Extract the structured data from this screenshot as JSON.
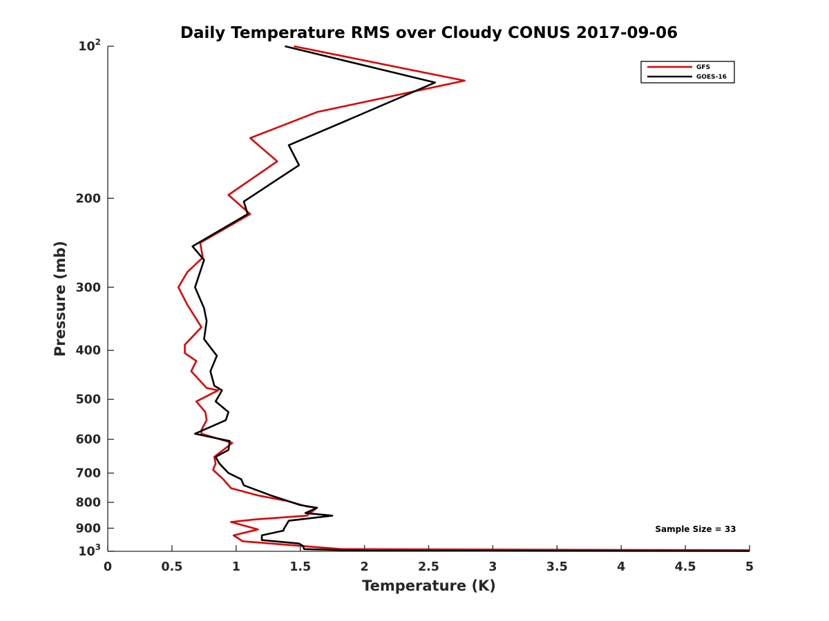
{
  "chart_data": {
    "type": "line",
    "title": "Daily Temperature RMS over Cloudy CONUS 2017-09-06",
    "xlabel": "Temperature (K)",
    "ylabel": "Pressure (mb)",
    "xlim": [
      0,
      5
    ],
    "ylim": [
      100,
      1000
    ],
    "y_scale": "log",
    "y_reversed": true,
    "grid": false,
    "legend_position": "top-right",
    "x_ticks": [
      "0",
      "0.5",
      "1",
      "1.5",
      "2",
      "2.5",
      "3",
      "3.5",
      "4",
      "4.5",
      "5"
    ],
    "y_ticks": [
      {
        "value": 100,
        "label": "10",
        "exp": "2"
      },
      {
        "value": 200,
        "label": "200"
      },
      {
        "value": 300,
        "label": "300"
      },
      {
        "value": 400,
        "label": "400"
      },
      {
        "value": 500,
        "label": "500"
      },
      {
        "value": 600,
        "label": "600"
      },
      {
        "value": 700,
        "label": "700"
      },
      {
        "value": 800,
        "label": "800"
      },
      {
        "value": 900,
        "label": "900"
      },
      {
        "value": 1000,
        "label": "10",
        "exp": "3"
      }
    ],
    "annotation": "Sample Size = 33",
    "series": [
      {
        "name": "GFS",
        "color": "#e00000",
        "points": [
          [
            1.45,
            100
          ],
          [
            2.78,
            117
          ],
          [
            1.63,
            135
          ],
          [
            1.11,
            152
          ],
          [
            1.32,
            169
          ],
          [
            0.94,
            197
          ],
          [
            1.11,
            215
          ],
          [
            0.72,
            245
          ],
          [
            0.74,
            262
          ],
          [
            0.62,
            280
          ],
          [
            0.55,
            300
          ],
          [
            0.62,
            325
          ],
          [
            0.73,
            360
          ],
          [
            0.6,
            390
          ],
          [
            0.6,
            405
          ],
          [
            0.69,
            420
          ],
          [
            0.65,
            440
          ],
          [
            0.77,
            475
          ],
          [
            0.86,
            480
          ],
          [
            0.69,
            505
          ],
          [
            0.76,
            530
          ],
          [
            0.77,
            550
          ],
          [
            0.73,
            575
          ],
          [
            0.73,
            585
          ],
          [
            0.97,
            610
          ],
          [
            0.9,
            630
          ],
          [
            0.83,
            650
          ],
          [
            0.84,
            670
          ],
          [
            0.82,
            690
          ],
          [
            0.9,
            720
          ],
          [
            0.96,
            750
          ],
          [
            1.17,
            775
          ],
          [
            1.4,
            795
          ],
          [
            1.55,
            815
          ],
          [
            1.63,
            820
          ],
          [
            1.55,
            850
          ],
          [
            1.14,
            865
          ],
          [
            0.96,
            875
          ],
          [
            1.17,
            905
          ],
          [
            0.98,
            930
          ],
          [
            1.05,
            955
          ],
          [
            1.82,
            990
          ],
          [
            5.0,
            995
          ]
        ]
      },
      {
        "name": "GOES-16",
        "color": "#000000",
        "points": [
          [
            1.38,
            100
          ],
          [
            2.55,
            118
          ],
          [
            1.87,
            140
          ],
          [
            1.41,
            157
          ],
          [
            1.49,
            172
          ],
          [
            1.06,
            203
          ],
          [
            1.09,
            215
          ],
          [
            0.66,
            249
          ],
          [
            0.75,
            265
          ],
          [
            0.68,
            300
          ],
          [
            0.75,
            330
          ],
          [
            0.77,
            350
          ],
          [
            0.75,
            380
          ],
          [
            0.85,
            410
          ],
          [
            0.8,
            440
          ],
          [
            0.83,
            470
          ],
          [
            0.89,
            480
          ],
          [
            0.84,
            505
          ],
          [
            0.94,
            530
          ],
          [
            0.92,
            550
          ],
          [
            0.68,
            585
          ],
          [
            0.95,
            605
          ],
          [
            0.94,
            630
          ],
          [
            0.84,
            650
          ],
          [
            0.87,
            670
          ],
          [
            0.94,
            700
          ],
          [
            1.04,
            720
          ],
          [
            1.06,
            740
          ],
          [
            1.27,
            775
          ],
          [
            1.5,
            810
          ],
          [
            1.63,
            820
          ],
          [
            1.54,
            840
          ],
          [
            1.75,
            850
          ],
          [
            1.41,
            870
          ],
          [
            1.37,
            905
          ],
          [
            1.37,
            910
          ],
          [
            1.2,
            930
          ],
          [
            1.2,
            950
          ],
          [
            1.49,
            965
          ],
          [
            1.52,
            975
          ],
          [
            1.53,
            990
          ],
          [
            2.0,
            997
          ],
          [
            5.0,
            999
          ]
        ]
      }
    ]
  }
}
